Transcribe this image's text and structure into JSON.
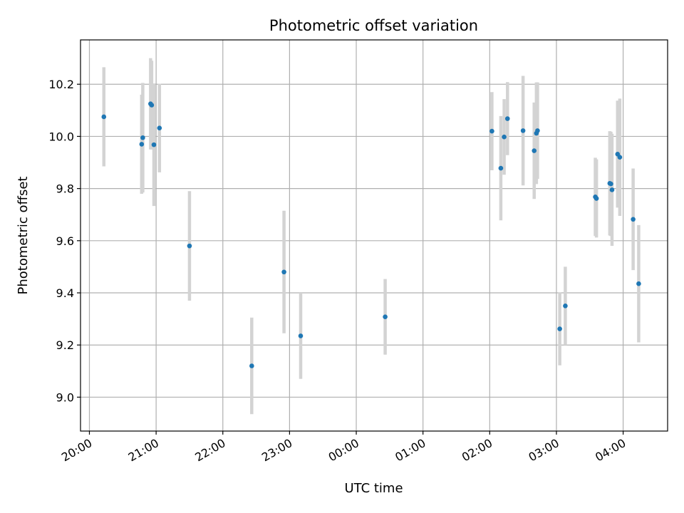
{
  "chart_data": {
    "type": "scatter",
    "title": "Photometric offset variation",
    "xlabel": "UTC time",
    "ylabel": "Photometric offset",
    "x_ticks": [
      "20:00",
      "21:00",
      "22:00",
      "23:00",
      "00:00",
      "01:00",
      "02:00",
      "03:00",
      "04:00"
    ],
    "y_ticks": [
      "9.0",
      "9.2",
      "9.4",
      "9.6",
      "9.8",
      "10.0",
      "10.2"
    ],
    "x_range": [
      "19:52",
      "04:40"
    ],
    "ylim": [
      8.87,
      10.37
    ],
    "grid": true,
    "colors": {
      "points": "#1f77b4",
      "error_bars": "#d3d3d3",
      "grid": "#b0b0b0"
    },
    "points": [
      {
        "x": "20:13",
        "y": 10.075,
        "err": 0.19
      },
      {
        "x": "20:47",
        "y": 9.97,
        "err": 0.19
      },
      {
        "x": "20:48",
        "y": 9.995,
        "err": 0.21
      },
      {
        "x": "20:55",
        "y": 10.125,
        "err": 0.175
      },
      {
        "x": "20:56",
        "y": 10.12,
        "err": 0.17
      },
      {
        "x": "20:58",
        "y": 9.968,
        "err": 0.235
      },
      {
        "x": "21:03",
        "y": 10.032,
        "err": 0.17
      },
      {
        "x": "21:30",
        "y": 9.58,
        "err": 0.21
      },
      {
        "x": "22:26",
        "y": 9.12,
        "err": 0.185
      },
      {
        "x": "22:55",
        "y": 9.48,
        "err": 0.235
      },
      {
        "x": "23:10",
        "y": 9.235,
        "err": 0.165
      },
      {
        "x": "00:26",
        "y": 9.308,
        "err": 0.145
      },
      {
        "x": "02:02",
        "y": 10.02,
        "err": 0.15
      },
      {
        "x": "02:10",
        "y": 9.878,
        "err": 0.2
      },
      {
        "x": "02:13",
        "y": 9.998,
        "err": 0.145
      },
      {
        "x": "02:16",
        "y": 10.068,
        "err": 0.14
      },
      {
        "x": "02:30",
        "y": 10.022,
        "err": 0.21
      },
      {
        "x": "02:40",
        "y": 9.945,
        "err": 0.185
      },
      {
        "x": "02:42",
        "y": 10.012,
        "err": 0.195
      },
      {
        "x": "02:43",
        "y": 10.022,
        "err": 0.185
      },
      {
        "x": "03:03",
        "y": 9.262,
        "err": 0.14
      },
      {
        "x": "03:08",
        "y": 9.35,
        "err": 0.15
      },
      {
        "x": "03:35",
        "y": 9.768,
        "err": 0.15
      },
      {
        "x": "03:36",
        "y": 9.762,
        "err": 0.15
      },
      {
        "x": "03:48",
        "y": 9.82,
        "err": 0.2
      },
      {
        "x": "03:49",
        "y": 9.818,
        "err": 0.2
      },
      {
        "x": "03:50",
        "y": 9.795,
        "err": 0.215
      },
      {
        "x": "03:55",
        "y": 9.932,
        "err": 0.205
      },
      {
        "x": "03:57",
        "y": 9.92,
        "err": 0.225
      },
      {
        "x": "04:09",
        "y": 9.682,
        "err": 0.195
      },
      {
        "x": "04:14",
        "y": 9.435,
        "err": 0.225
      }
    ]
  }
}
